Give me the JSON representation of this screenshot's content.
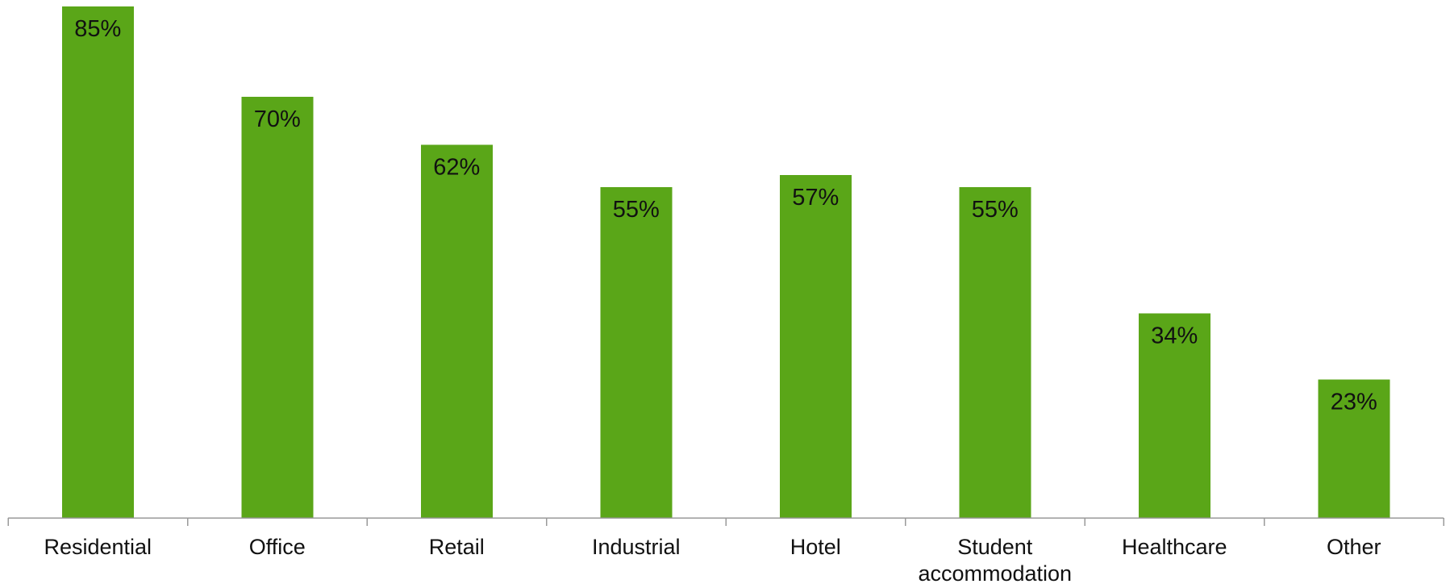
{
  "chart_data": {
    "type": "bar",
    "categories": [
      [
        "Residential"
      ],
      [
        "Office"
      ],
      [
        "Retail"
      ],
      [
        "Industrial"
      ],
      [
        "Hotel"
      ],
      [
        "Student",
        "accommodation"
      ],
      [
        "Healthcare"
      ],
      [
        "Other"
      ]
    ],
    "values": [
      85,
      70,
      62,
      55,
      57,
      55,
      34,
      23
    ],
    "data_labels": [
      "85%",
      "70%",
      "62%",
      "55%",
      "57%",
      "55%",
      "34%",
      "23%"
    ],
    "title": "",
    "xlabel": "",
    "ylabel": "",
    "ylim": [
      0,
      85
    ],
    "grid": false,
    "legend": "none",
    "colors": {
      "bar": "#5aa618",
      "axis": "#9a9a9a",
      "text": "#111111"
    }
  }
}
